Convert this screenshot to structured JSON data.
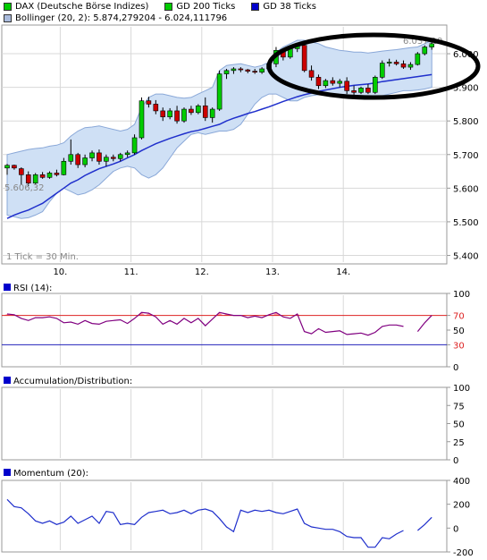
{
  "legend": {
    "items": [
      {
        "label": "DAX (Deutsche Börse Indizes)",
        "color": "#00cc00"
      },
      {
        "label": "GD 200 Ticks",
        "color": "#00cc00"
      },
      {
        "label": "GD 38 Ticks",
        "color": "#0000cc"
      }
    ],
    "bollinger": {
      "label": "Bollinger (20, 2): 5.874,279204 - 6.024,111796",
      "color": "#aabbdd"
    }
  },
  "colors": {
    "up": "#00cc00",
    "down": "#cc0000",
    "gd38": "#1f2fcc",
    "band_fill": "#cfe0f5",
    "band_line": "#8aa8d8",
    "rsi": "#800080",
    "momentum": "#1f2fcc",
    "grid": "#d8d8d8",
    "annotation": "#000000"
  },
  "price_panel": {
    "y_ticks": [
      "6.000",
      "5.900",
      "5.800",
      "5.700",
      "5.600",
      "5.500",
      "5.400"
    ],
    "x_ticks": [
      "10.",
      "11.",
      "12.",
      "13.",
      "14."
    ],
    "label_max": "6.037,19",
    "label_min": "5.606,32",
    "tick_note": "1 Tick = 30 Min.",
    "annotation": "ellipse around days 13.–14."
  },
  "rsi_panel": {
    "title": "RSI (14):",
    "y_ticks": [
      "100",
      "70",
      "50",
      "30",
      "0"
    ]
  },
  "ad_panel": {
    "title": "Accumulation/Distribution:",
    "y_ticks": [
      "100",
      "75",
      "50",
      "25",
      "0"
    ]
  },
  "momentum_panel": {
    "title": "Momentum (20):",
    "y_ticks": [
      "400",
      "200",
      "0",
      "-200"
    ]
  },
  "chart_data": [
    {
      "type": "candlestick",
      "series_name": "DAX (Deutsche Börse Indizes)",
      "interval": "30 Min.",
      "ylim": [
        5380,
        6080
      ],
      "x_days": [
        "10.",
        "11.",
        "12.",
        "13.",
        "14."
      ],
      "y_ticks": [
        6000,
        5900,
        5800,
        5700,
        5600,
        5500,
        5400
      ],
      "day_start_index": [
        8,
        18,
        28,
        38,
        48
      ],
      "candles": [
        {
          "o": 5660,
          "h": 5672,
          "l": 5640,
          "c": 5668
        },
        {
          "o": 5668,
          "h": 5670,
          "l": 5655,
          "c": 5660
        },
        {
          "o": 5658,
          "h": 5662,
          "l": 5610,
          "c": 5640
        },
        {
          "o": 5640,
          "h": 5650,
          "l": 5606,
          "c": 5615
        },
        {
          "o": 5615,
          "h": 5645,
          "l": 5612,
          "c": 5640
        },
        {
          "o": 5640,
          "h": 5648,
          "l": 5628,
          "c": 5632
        },
        {
          "o": 5632,
          "h": 5650,
          "l": 5628,
          "c": 5645
        },
        {
          "o": 5645,
          "h": 5655,
          "l": 5635,
          "c": 5640
        },
        {
          "o": 5640,
          "h": 5690,
          "l": 5638,
          "c": 5680
        },
        {
          "o": 5680,
          "h": 5745,
          "l": 5670,
          "c": 5700
        },
        {
          "o": 5700,
          "h": 5705,
          "l": 5660,
          "c": 5670
        },
        {
          "o": 5670,
          "h": 5700,
          "l": 5662,
          "c": 5690
        },
        {
          "o": 5690,
          "h": 5712,
          "l": 5680,
          "c": 5705
        },
        {
          "o": 5705,
          "h": 5715,
          "l": 5670,
          "c": 5680
        },
        {
          "o": 5680,
          "h": 5700,
          "l": 5665,
          "c": 5692
        },
        {
          "o": 5692,
          "h": 5700,
          "l": 5680,
          "c": 5688
        },
        {
          "o": 5688,
          "h": 5705,
          "l": 5680,
          "c": 5700
        },
        {
          "o": 5700,
          "h": 5712,
          "l": 5692,
          "c": 5705
        },
        {
          "o": 5705,
          "h": 5760,
          "l": 5700,
          "c": 5750
        },
        {
          "o": 5750,
          "h": 5870,
          "l": 5745,
          "c": 5860
        },
        {
          "o": 5860,
          "h": 5872,
          "l": 5840,
          "c": 5850
        },
        {
          "o": 5850,
          "h": 5862,
          "l": 5820,
          "c": 5830
        },
        {
          "o": 5830,
          "h": 5840,
          "l": 5800,
          "c": 5812
        },
        {
          "o": 5812,
          "h": 5838,
          "l": 5805,
          "c": 5830
        },
        {
          "o": 5830,
          "h": 5845,
          "l": 5792,
          "c": 5800
        },
        {
          "o": 5800,
          "h": 5840,
          "l": 5795,
          "c": 5835
        },
        {
          "o": 5835,
          "h": 5845,
          "l": 5818,
          "c": 5825
        },
        {
          "o": 5825,
          "h": 5850,
          "l": 5820,
          "c": 5845
        },
        {
          "o": 5845,
          "h": 5870,
          "l": 5800,
          "c": 5810
        },
        {
          "o": 5810,
          "h": 5840,
          "l": 5795,
          "c": 5835
        },
        {
          "o": 5835,
          "h": 5950,
          "l": 5830,
          "c": 5940
        },
        {
          "o": 5940,
          "h": 5955,
          "l": 5925,
          "c": 5950
        },
        {
          "o": 5950,
          "h": 5960,
          "l": 5940,
          "c": 5955
        },
        {
          "o": 5955,
          "h": 5960,
          "l": 5945,
          "c": 5952
        },
        {
          "o": 5952,
          "h": 5955,
          "l": 5942,
          "c": 5948
        },
        {
          "o": 5948,
          "h": 5955,
          "l": 5940,
          "c": 5945
        },
        {
          "o": 5945,
          "h": 5960,
          "l": 5940,
          "c": 5955
        },
        {
          "o": 5955,
          "h": 5975,
          "l": 5950,
          "c": 5970
        },
        {
          "o": 5970,
          "h": 6020,
          "l": 5960,
          "c": 6010
        },
        {
          "o": 6010,
          "h": 6015,
          "l": 5980,
          "c": 5990
        },
        {
          "o": 5990,
          "h": 6025,
          "l": 5985,
          "c": 6015
        },
        {
          "o": 6015,
          "h": 6032,
          "l": 6005,
          "c": 6025
        },
        {
          "o": 6025,
          "h": 6030,
          "l": 5945,
          "c": 5950
        },
        {
          "o": 5950,
          "h": 5965,
          "l": 5920,
          "c": 5930
        },
        {
          "o": 5930,
          "h": 5938,
          "l": 5895,
          "c": 5905
        },
        {
          "o": 5905,
          "h": 5925,
          "l": 5898,
          "c": 5920
        },
        {
          "o": 5920,
          "h": 5930,
          "l": 5905,
          "c": 5912
        },
        {
          "o": 5912,
          "h": 5925,
          "l": 5900,
          "c": 5918
        },
        {
          "o": 5918,
          "h": 5930,
          "l": 5880,
          "c": 5890
        },
        {
          "o": 5890,
          "h": 5905,
          "l": 5878,
          "c": 5885
        },
        {
          "o": 5885,
          "h": 5902,
          "l": 5880,
          "c": 5898
        },
        {
          "o": 5898,
          "h": 5910,
          "l": 5880,
          "c": 5885
        },
        {
          "o": 5885,
          "h": 5935,
          "l": 5880,
          "c": 5930
        },
        {
          "o": 5930,
          "h": 5980,
          "l": 5925,
          "c": 5972
        },
        {
          "o": 5972,
          "h": 5985,
          "l": 5962,
          "c": 5975
        },
        {
          "o": 5975,
          "h": 5982,
          "l": 5965,
          "c": 5970
        },
        {
          "o": 5970,
          "h": 5980,
          "l": 5955,
          "c": 5960
        },
        {
          "o": 5960,
          "h": 5975,
          "l": 5952,
          "c": 5968
        },
        {
          "o": 5968,
          "h": 6005,
          "l": 5965,
          "c": 6000
        },
        {
          "o": 6000,
          "h": 6025,
          "l": 5995,
          "c": 6020
        },
        {
          "o": 6020,
          "h": 6037,
          "l": 6012,
          "c": 6030
        }
      ],
      "gd38": [
        5510,
        5520,
        5528,
        5535,
        5545,
        5555,
        5570,
        5585,
        5600,
        5615,
        5625,
        5638,
        5648,
        5658,
        5665,
        5672,
        5680,
        5690,
        5700,
        5712,
        5722,
        5732,
        5740,
        5748,
        5755,
        5762,
        5768,
        5772,
        5778,
        5784,
        5790,
        5800,
        5808,
        5815,
        5822,
        5828,
        5835,
        5842,
        5850,
        5858,
        5865,
        5872,
        5878,
        5883,
        5888,
        5892,
        5896,
        5900,
        5903,
        5906,
        5908,
        5910,
        5913,
        5917,
        5920,
        5923,
        5926,
        5929,
        5932,
        5935,
        5938
      ],
      "bb_upper": [
        5700,
        5705,
        5710,
        5715,
        5718,
        5720,
        5725,
        5728,
        5735,
        5755,
        5770,
        5780,
        5782,
        5785,
        5780,
        5775,
        5770,
        5775,
        5790,
        5840,
        5870,
        5880,
        5880,
        5875,
        5870,
        5868,
        5870,
        5880,
        5890,
        5900,
        5950,
        5965,
        5968,
        5970,
        5965,
        5960,
        5965,
        5975,
        6005,
        6020,
        6030,
        6040,
        6040,
        6035,
        6030,
        6020,
        6015,
        6010,
        6008,
        6005,
        6005,
        6002,
        6005,
        6008,
        6010,
        6012,
        6015,
        6018,
        6020,
        6030,
        6040
      ],
      "bb_lower": [
        5520,
        5515,
        5510,
        5512,
        5520,
        5530,
        5560,
        5585,
        5600,
        5590,
        5580,
        5585,
        5595,
        5610,
        5630,
        5650,
        5660,
        5665,
        5660,
        5640,
        5630,
        5640,
        5660,
        5690,
        5720,
        5740,
        5760,
        5765,
        5760,
        5765,
        5770,
        5770,
        5775,
        5790,
        5820,
        5850,
        5870,
        5880,
        5880,
        5870,
        5860,
        5860,
        5870,
        5875,
        5878,
        5878,
        5876,
        5874,
        5872,
        5870,
        5868,
        5866,
        5870,
        5875,
        5880,
        5885,
        5890,
        5890,
        5892,
        5895,
        5900
      ]
    },
    {
      "type": "line",
      "series_name": "RSI (14)",
      "ylim": [
        0,
        100
      ],
      "y_ticks": [
        100,
        70,
        50,
        30,
        0
      ],
      "reference_lines": [
        70,
        30
      ],
      "values": [
        72,
        71,
        66,
        63,
        67,
        67,
        68,
        66,
        60,
        61,
        58,
        63,
        59,
        58,
        62,
        63,
        64,
        59,
        66,
        74,
        73,
        68,
        58,
        63,
        58,
        66,
        60,
        66,
        56,
        65,
        74,
        72,
        70,
        70,
        67,
        69,
        67,
        71,
        74,
        68,
        66,
        72,
        48,
        45,
        52,
        47,
        48,
        49,
        44,
        45,
        46,
        43,
        47,
        55,
        57,
        57,
        55,
        null,
        48,
        60,
        70
      ]
    },
    {
      "type": "line",
      "series_name": "Accumulation/Distribution",
      "ylim": [
        0,
        100
      ],
      "y_ticks": [
        100,
        75,
        50,
        25,
        0
      ],
      "values": []
    },
    {
      "type": "line",
      "series_name": "Momentum (20)",
      "ylim": [
        -200,
        400
      ],
      "y_ticks": [
        400,
        200,
        0,
        -200
      ],
      "values": [
        240,
        180,
        170,
        120,
        60,
        40,
        60,
        30,
        50,
        100,
        40,
        70,
        100,
        40,
        140,
        130,
        30,
        40,
        30,
        90,
        130,
        140,
        150,
        120,
        130,
        150,
        120,
        150,
        160,
        140,
        80,
        10,
        -30,
        150,
        130,
        150,
        140,
        150,
        130,
        120,
        140,
        160,
        40,
        10,
        0,
        -10,
        -10,
        -30,
        -70,
        -80,
        -80,
        -160,
        -160,
        -80,
        -90,
        -50,
        -20,
        null,
        -20,
        30,
        90
      ]
    }
  ]
}
